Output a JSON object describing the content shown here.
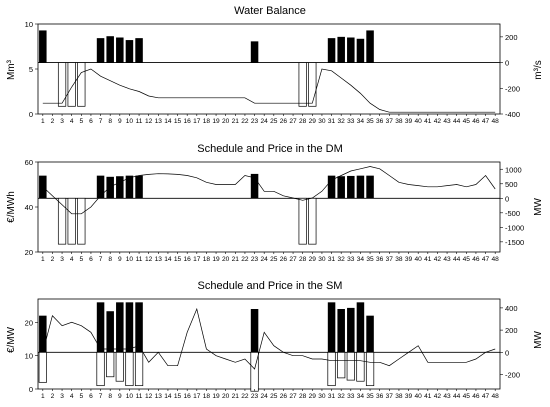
{
  "chart_data": [
    {
      "type": "bar",
      "title": "Water Balance",
      "ylabel_left": "Mm³",
      "ylabel_right": "m³/s",
      "hours": [
        1,
        2,
        3,
        4,
        5,
        6,
        7,
        8,
        9,
        10,
        11,
        12,
        13,
        14,
        15,
        16,
        17,
        18,
        19,
        20,
        21,
        22,
        23,
        24,
        25,
        26,
        27,
        28,
        29,
        30,
        31,
        32,
        33,
        34,
        35,
        36,
        37,
        38,
        39,
        40,
        41,
        42,
        43,
        44,
        45,
        46,
        47,
        48
      ],
      "left_axis": {
        "ylim": [
          0,
          10
        ],
        "ticks": [
          0,
          5,
          10
        ]
      },
      "right_axis": {
        "ylim": [
          -400,
          300
        ],
        "ticks": [
          200,
          0,
          -200,
          -400
        ]
      },
      "series": [
        {
          "kind": "bar-positive",
          "values": [
            250,
            0,
            0,
            0,
            0,
            0,
            190,
            205,
            195,
            175,
            190,
            0,
            0,
            0,
            0,
            0,
            0,
            0,
            0,
            0,
            0,
            0,
            165,
            0,
            0,
            0,
            0,
            0,
            0,
            0,
            190,
            200,
            195,
            185,
            250,
            0,
            0,
            0,
            0,
            0,
            0,
            0,
            0,
            0,
            0,
            0,
            0,
            0
          ]
        },
        {
          "kind": "bar-negative",
          "values": [
            0,
            0,
            -340,
            -340,
            -340,
            0,
            0,
            0,
            0,
            0,
            0,
            0,
            0,
            0,
            0,
            0,
            0,
            0,
            0,
            0,
            0,
            0,
            0,
            0,
            0,
            0,
            0,
            -340,
            -340,
            0,
            0,
            0,
            0,
            0,
            0,
            0,
            0,
            0,
            0,
            0,
            0,
            0,
            0,
            0,
            0,
            0,
            0,
            0
          ]
        },
        {
          "kind": "line",
          "axis": "left",
          "values": [
            1.2,
            1.2,
            1.2,
            3.0,
            4.6,
            5.0,
            4.2,
            3.7,
            3.2,
            2.8,
            2.5,
            2.0,
            1.8,
            1.8,
            1.8,
            1.8,
            1.8,
            1.8,
            1.8,
            1.8,
            1.8,
            1.8,
            1.2,
            1.2,
            1.2,
            1.2,
            1.2,
            1.2,
            1.2,
            5.0,
            4.8,
            4.0,
            3.2,
            2.3,
            1.2,
            0.5,
            0.2,
            0.2,
            0.2,
            0.2,
            0.2,
            0.2,
            0.2,
            0.2,
            0.2,
            0.2,
            0.2,
            0.2
          ]
        }
      ]
    },
    {
      "type": "bar",
      "title": "Schedule and Price in the DM",
      "ylabel_left": "€/MWh",
      "ylabel_right": "MW",
      "hours": [
        1,
        2,
        3,
        4,
        5,
        6,
        7,
        8,
        9,
        10,
        11,
        12,
        13,
        14,
        15,
        16,
        17,
        18,
        19,
        20,
        21,
        22,
        23,
        24,
        25,
        26,
        27,
        28,
        29,
        30,
        31,
        32,
        33,
        34,
        35,
        36,
        37,
        38,
        39,
        40,
        41,
        42,
        43,
        44,
        45,
        46,
        47,
        48
      ],
      "left_axis": {
        "ylim": [
          20,
          60
        ],
        "ticks": [
          20,
          40,
          60
        ]
      },
      "right_axis": {
        "ylim": [
          -1850,
          1250
        ],
        "ticks": [
          1000,
          500,
          0,
          -500,
          -1000,
          -1500
        ]
      },
      "series": [
        {
          "kind": "bar-positive",
          "values": [
            780,
            0,
            0,
            0,
            0,
            0,
            780,
            740,
            760,
            780,
            780,
            0,
            0,
            0,
            0,
            0,
            0,
            0,
            0,
            0,
            0,
            0,
            840,
            0,
            0,
            0,
            0,
            0,
            0,
            0,
            780,
            760,
            770,
            780,
            780,
            0,
            0,
            0,
            0,
            0,
            0,
            0,
            0,
            0,
            0,
            0,
            0,
            0
          ]
        },
        {
          "kind": "bar-negative",
          "values": [
            0,
            0,
            -1580,
            -1580,
            -1580,
            0,
            0,
            0,
            0,
            0,
            0,
            0,
            0,
            0,
            0,
            0,
            0,
            0,
            0,
            0,
            0,
            0,
            0,
            0,
            0,
            0,
            0,
            -1580,
            -1580,
            0,
            0,
            0,
            0,
            0,
            0,
            0,
            0,
            0,
            0,
            0,
            0,
            0,
            0,
            0,
            0,
            0,
            0,
            0
          ]
        },
        {
          "kind": "line",
          "axis": "left",
          "values": [
            49,
            45,
            41,
            37,
            37,
            40,
            45,
            49,
            51,
            53,
            54,
            54.5,
            54.8,
            54.7,
            54.5,
            54,
            53,
            51,
            50,
            50,
            50,
            54,
            53,
            47,
            47,
            45,
            44,
            43,
            44,
            47,
            52,
            54,
            56,
            57,
            58,
            57,
            54,
            51,
            50,
            49.5,
            49,
            49,
            49.5,
            50,
            49,
            50,
            54,
            48
          ]
        }
      ]
    },
    {
      "type": "bar",
      "title": "Schedule and Price in the SM",
      "ylabel_left": "€/MW",
      "ylabel_right": "MW",
      "hours": [
        1,
        2,
        3,
        4,
        5,
        6,
        7,
        8,
        9,
        10,
        11,
        12,
        13,
        14,
        15,
        16,
        17,
        18,
        19,
        20,
        21,
        22,
        23,
        24,
        25,
        26,
        27,
        28,
        29,
        30,
        31,
        32,
        33,
        34,
        35,
        36,
        37,
        38,
        39,
        40,
        41,
        42,
        43,
        44,
        45,
        46,
        47,
        48
      ],
      "left_axis": {
        "ylim": [
          0,
          27
        ],
        "ticks": [
          0,
          10,
          20
        ]
      },
      "right_axis": {
        "ylim": [
          -330,
          480
        ],
        "ticks": [
          400,
          200,
          0,
          -200
        ]
      },
      "series": [
        {
          "kind": "bar-positive",
          "values": [
            330,
            0,
            0,
            0,
            0,
            0,
            450,
            370,
            450,
            450,
            450,
            0,
            0,
            0,
            0,
            0,
            0,
            0,
            0,
            0,
            0,
            0,
            390,
            0,
            0,
            0,
            0,
            0,
            0,
            0,
            450,
            390,
            400,
            450,
            330,
            0,
            0,
            0,
            0,
            0,
            0,
            0,
            0,
            0,
            0,
            0,
            0,
            0
          ]
        },
        {
          "kind": "bar-negative",
          "values": [
            -270,
            0,
            0,
            0,
            0,
            0,
            -300,
            -220,
            -260,
            -300,
            -300,
            0,
            0,
            0,
            0,
            0,
            0,
            0,
            0,
            0,
            0,
            0,
            -350,
            0,
            0,
            0,
            0,
            0,
            0,
            0,
            -300,
            -230,
            -250,
            -260,
            -300,
            0,
            0,
            0,
            0,
            0,
            0,
            0,
            0,
            0,
            0,
            0,
            0,
            0
          ]
        },
        {
          "kind": "line",
          "axis": "left",
          "values": [
            11,
            22,
            19,
            20,
            19,
            17,
            12,
            12,
            12,
            12,
            13,
            8,
            11,
            7,
            7,
            17,
            24,
            12,
            10,
            9,
            8,
            9,
            6,
            17,
            13,
            11,
            10,
            10,
            9,
            9,
            8.5,
            8.5,
            8.5,
            8.5,
            8,
            8,
            7,
            9,
            11,
            13,
            8,
            8,
            8,
            8,
            8,
            9,
            11,
            12
          ]
        }
      ]
    }
  ]
}
